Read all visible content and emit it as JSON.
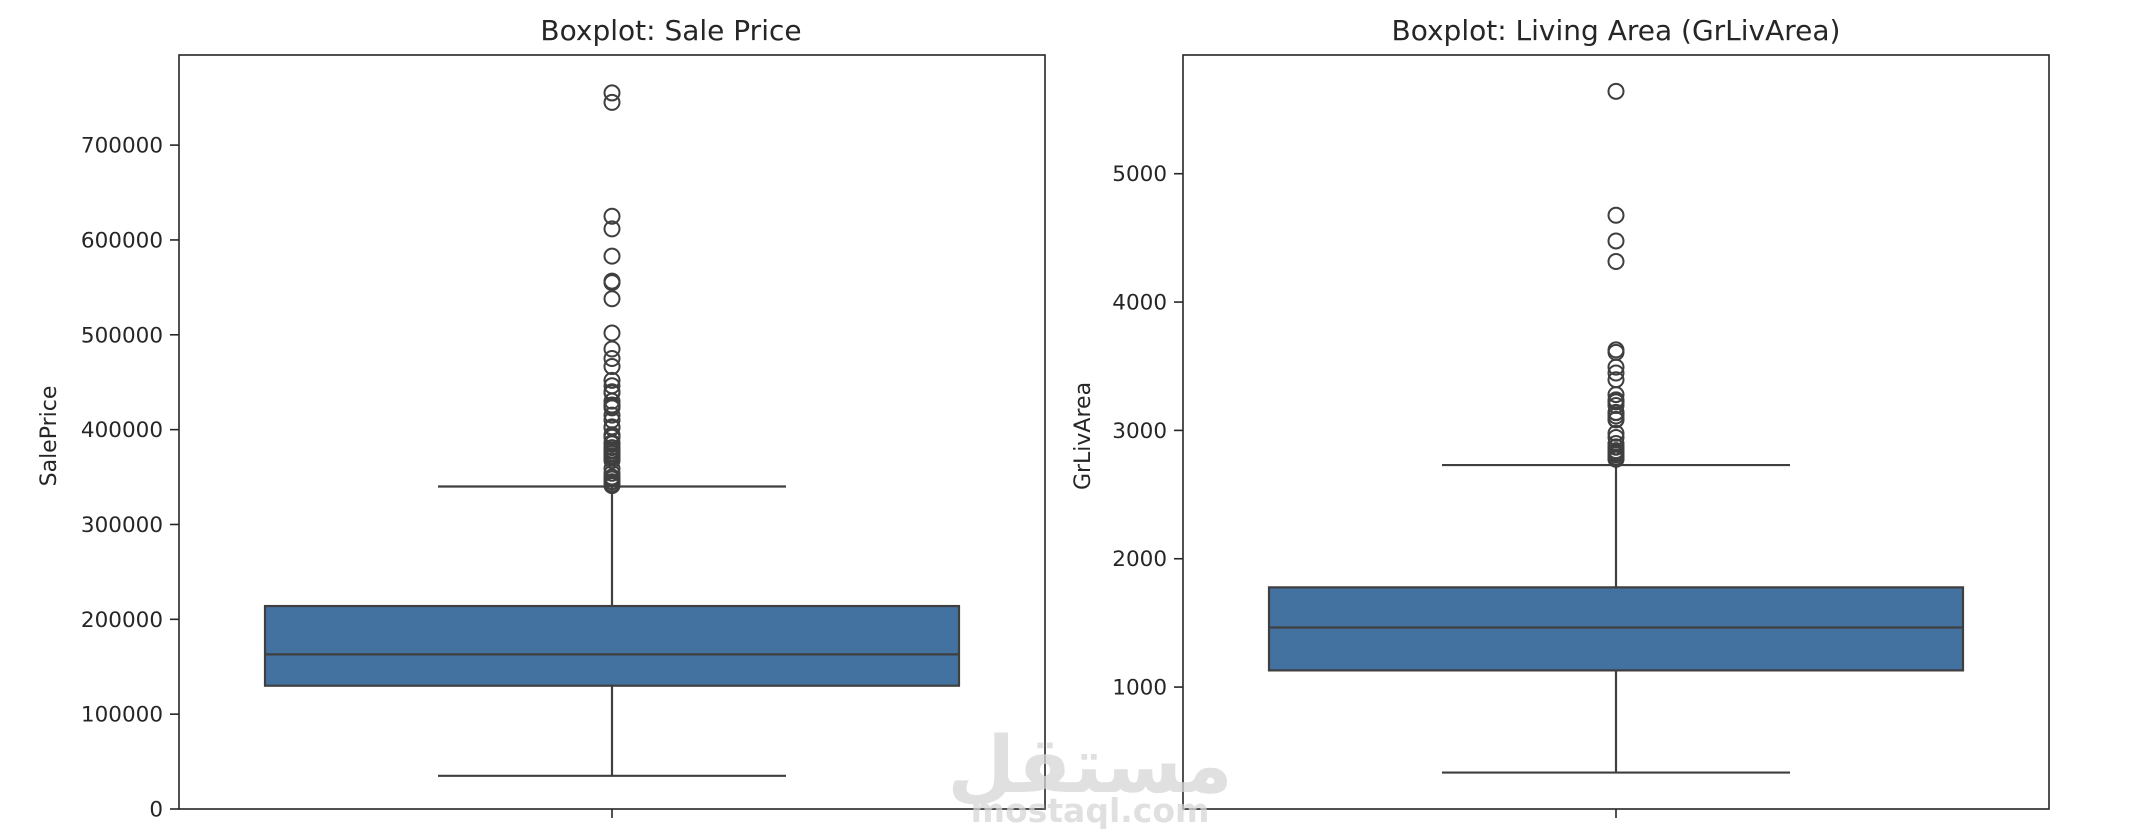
{
  "chart_data": [
    {
      "type": "box",
      "title": "Boxplot: Sale Price",
      "ylabel": "SalePrice",
      "xlabel": "",
      "ylim": [
        0,
        795000
      ],
      "yticks": [
        0,
        100000,
        200000,
        300000,
        400000,
        500000,
        600000,
        700000
      ],
      "ytick_labels": [
        "0",
        "100000",
        "200000",
        "300000",
        "400000",
        "500000",
        "600000",
        "700000"
      ],
      "grid": false,
      "box": {
        "whisker_low": 35000,
        "q1": 130000,
        "median": 163000,
        "q3": 214000,
        "whisker_high": 340000
      },
      "outliers": [
        755000,
        745000,
        625000,
        611657,
        582933,
        556581,
        555000,
        538000,
        501837,
        485000,
        475000,
        466500,
        451950,
        446261,
        440000,
        438780,
        430000,
        426000,
        424870,
        423000,
        415298,
        410000,
        402861,
        402000,
        394617,
        392500,
        392000,
        386250,
        385000,
        381000,
        378500,
        377500,
        377426,
        375000,
        372500,
        372402,
        370878,
        369900,
        367294,
        359100,
        354000,
        350000,
        348000,
        345000,
        342643,
        341000
      ],
      "color": "#4472a0",
      "edge_color": "#3f3f3f"
    },
    {
      "type": "box",
      "title": "Boxplot: Living Area (GrLivArea)",
      "ylabel": "GrLivArea",
      "xlabel": "",
      "ylim": [
        50,
        5925
      ],
      "yticks": [
        1000,
        2000,
        3000,
        4000,
        5000
      ],
      "ytick_labels": [
        "1000",
        "2000",
        "3000",
        "4000",
        "5000"
      ],
      "grid": false,
      "box": {
        "whisker_low": 334,
        "q1": 1130,
        "median": 1464,
        "q3": 1777,
        "whisker_high": 2730
      },
      "outliers": [
        5642,
        4676,
        4476,
        4316,
        3627,
        3608,
        3493,
        3447,
        3395,
        3279,
        3238,
        3228,
        3222,
        3194,
        3140,
        3138,
        3112,
        3086,
        3082,
        2978,
        2945,
        2898,
        2872,
        2869,
        2842,
        2828,
        2822,
        2810,
        2792,
        2784,
        2775
      ],
      "color": "#4472a0",
      "edge_color": "#3f3f3f"
    }
  ],
  "watermark": {
    "arabic": "مستقل",
    "latin": "mostaql.com"
  }
}
